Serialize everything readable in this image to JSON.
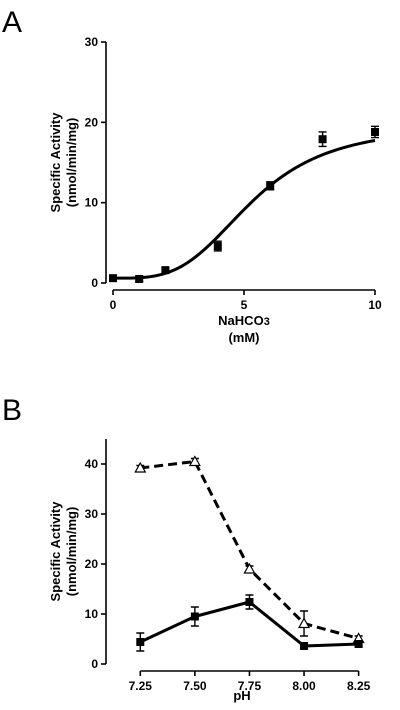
{
  "chart_data": [
    {
      "panel_label": "A",
      "type": "scatter",
      "xlabel": "NaHCO3",
      "xlabel_parts": [
        "NaHCO",
        "3"
      ],
      "xlabel_unit": "(mM)",
      "ylabel_lines": [
        "Specific Activity",
        "(nmol/min/mg)"
      ],
      "xlim": [
        0,
        10
      ],
      "ylim": [
        0,
        30
      ],
      "xticks": [
        "0",
        "5",
        "10"
      ],
      "yticks": [
        "0",
        "10",
        "20",
        "30"
      ],
      "fit_curve": "sigmoidal",
      "fit_params": {
        "bottom": 0.6,
        "top": 19.6,
        "ec50": 5.3,
        "hill": 3.5
      },
      "series": [
        {
          "marker": "square-filled",
          "line": "solid-fit",
          "x": [
            0,
            1,
            2,
            4,
            6,
            8,
            10
          ],
          "y": [
            0.6,
            0.5,
            1.6,
            4.6,
            12.1,
            17.9,
            18.8
          ],
          "err": [
            0.3,
            0.3,
            0.3,
            0.6,
            0.5,
            0.9,
            0.7
          ]
        }
      ]
    },
    {
      "panel_label": "B",
      "type": "line",
      "xlabel": "pH",
      "ylabel_lines": [
        "Specific Activity",
        "(nmol/min/mg)"
      ],
      "xlim": [
        7.125,
        8.325
      ],
      "ylim": [
        0,
        45
      ],
      "xticks": [
        "7.25",
        "7.50",
        "7.75",
        "8.00",
        "8.25"
      ],
      "yticks": [
        "0",
        "10",
        "20",
        "30",
        "40"
      ],
      "series": [
        {
          "marker": "triangle-open",
          "line": "dashed",
          "x": [
            7.25,
            7.5,
            7.75,
            8.0,
            8.25
          ],
          "y": [
            39.2,
            40.5,
            19.0,
            8.1,
            5.1
          ],
          "err": [
            0.5,
            0.6,
            0.6,
            2.5,
            0.5
          ]
        },
        {
          "marker": "square-filled",
          "line": "solid",
          "x": [
            7.25,
            7.5,
            7.75,
            8.0,
            8.25
          ],
          "y": [
            4.4,
            9.5,
            12.4,
            3.6,
            4.0
          ],
          "err": [
            1.8,
            1.9,
            1.4,
            0.4,
            0.5
          ]
        }
      ]
    }
  ]
}
